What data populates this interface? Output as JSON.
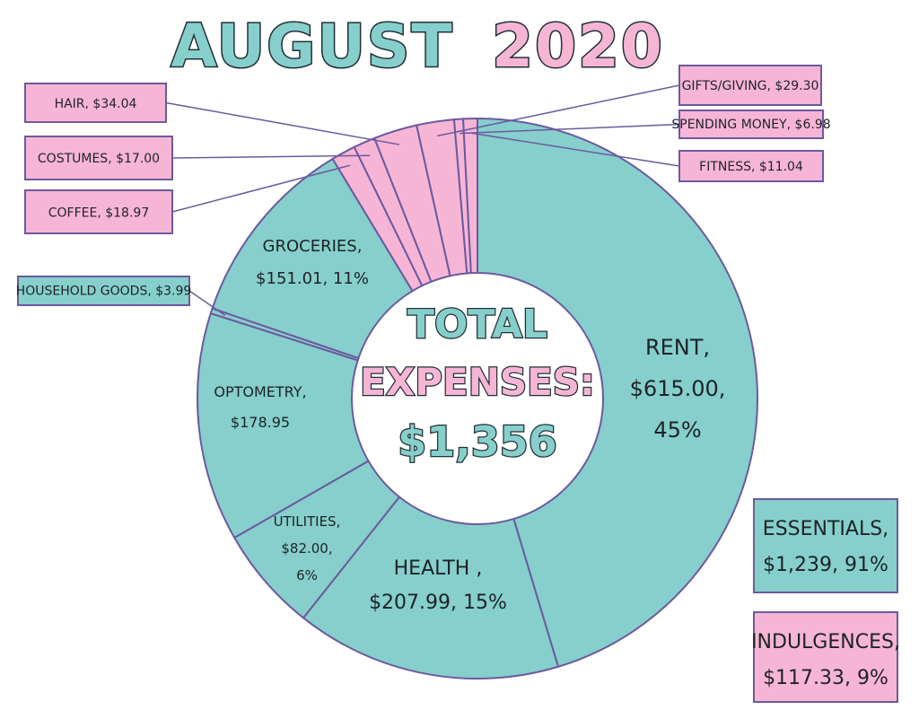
{
  "chart_data": {
    "type": "pie",
    "title_part1": "AUGUST",
    "title_part2": "2020",
    "center_line1": "TOTAL",
    "center_line2": "EXPENSES:",
    "center_line3": "$1,356",
    "colors": {
      "essential": "#86cfcc",
      "indulgence": "#f7b5d6",
      "outline": "#6b5a9e",
      "title_teal": "#86cfcc",
      "title_pink": "#f7b5d6",
      "dark": "#1f2f35"
    },
    "slices": [
      {
        "key": "rent",
        "category": "essential",
        "value": 615.0,
        "label_lines": [
          "RENT,",
          "$615.00,",
          "45%"
        ]
      },
      {
        "key": "health",
        "category": "essential",
        "value": 207.99,
        "label_lines": [
          "HEALTH ,",
          "$207.99, 15%"
        ]
      },
      {
        "key": "utilities",
        "category": "essential",
        "value": 82.0,
        "label_lines": [
          "UTILITIES,",
          "$82.00,",
          "6%"
        ]
      },
      {
        "key": "optometry",
        "category": "essential",
        "value": 178.95,
        "label_lines": [
          "OPTOMETRY,",
          "$178.95"
        ]
      },
      {
        "key": "household-goods",
        "category": "essential",
        "value": 3.99,
        "callout": "HOUSEHOLD GOODS, $3.99"
      },
      {
        "key": "groceries",
        "category": "essential",
        "value": 151.01,
        "label_lines": [
          "GROCERIES,",
          "$151.01, 11%"
        ]
      },
      {
        "key": "coffee",
        "category": "indulgence",
        "value": 18.97,
        "callout": "COFFEE, $18.97"
      },
      {
        "key": "costumes",
        "category": "indulgence",
        "value": 17.0,
        "callout": "COSTUMES, $17.00"
      },
      {
        "key": "hair",
        "category": "indulgence",
        "value": 34.04,
        "callout": "HAIR, $34.04"
      },
      {
        "key": "gifts-giving",
        "category": "indulgence",
        "value": 29.3,
        "callout": "GIFTS/GIVING, $29.30"
      },
      {
        "key": "spending-money",
        "category": "indulgence",
        "value": 6.98,
        "callout": "SPENDING MONEY, $6.98"
      },
      {
        "key": "fitness",
        "category": "indulgence",
        "value": 11.04,
        "callout": "FITNESS, $11.04"
      }
    ],
    "summary": [
      {
        "key": "essentials",
        "category": "essential",
        "lines": [
          "ESSENTIALS,",
          "$1,239, 91%"
        ]
      },
      {
        "key": "indulgences",
        "category": "indulgence",
        "lines": [
          "INDULGENCES,",
          "$117.33, 9%"
        ]
      }
    ]
  }
}
